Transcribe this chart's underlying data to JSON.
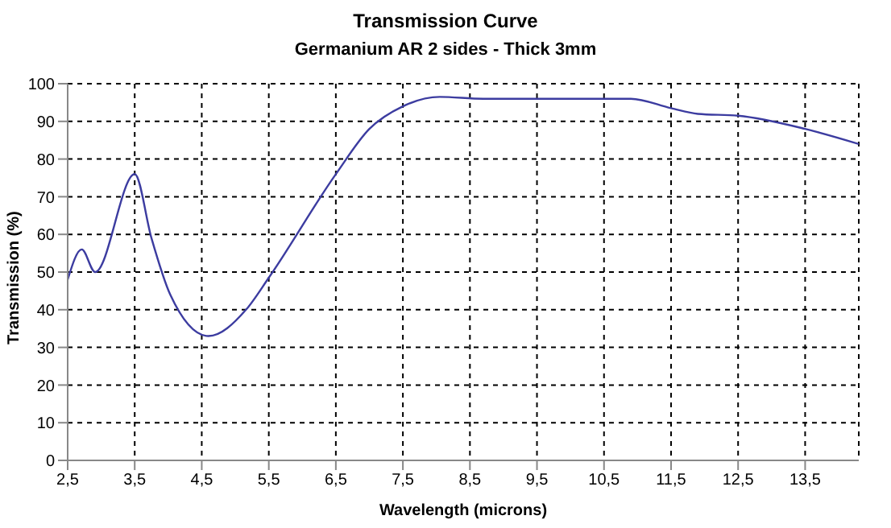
{
  "chart_data": {
    "type": "line",
    "title": "Transmission Curve",
    "subtitle": "Germanium AR 2 sides - Thick 3mm",
    "xlabel": "Wavelength (microns)",
    "ylabel": "Transmission (%)",
    "series": [
      {
        "color": "#3c3ca0",
        "x": [
          2.5,
          2.71,
          2.91,
          3.5,
          3.75,
          4.03,
          4.6,
          5.16,
          5.5,
          6.5,
          7.0,
          7.5,
          8.05,
          8.7,
          10.9,
          11.5,
          11.9,
          12.5,
          13.5,
          14.3
        ],
        "values": [
          48,
          56,
          50,
          76,
          59,
          44,
          33,
          40,
          48.5,
          76,
          88,
          94,
          96.5,
          96,
          96,
          93.5,
          92,
          91.5,
          88,
          84
        ]
      }
    ],
    "xlim": [
      2.5,
      14.3
    ],
    "xticks": [
      {
        "value": 2.5,
        "label": "2,5"
      },
      {
        "value": 3.5,
        "label": "3,5"
      },
      {
        "value": 4.5,
        "label": "4,5"
      },
      {
        "value": 5.5,
        "label": "5,5"
      },
      {
        "value": 6.5,
        "label": "6,5"
      },
      {
        "value": 7.5,
        "label": "7,5"
      },
      {
        "value": 8.5,
        "label": "8,5"
      },
      {
        "value": 9.5,
        "label": "9,5"
      },
      {
        "value": 10.5,
        "label": "10,5"
      },
      {
        "value": 11.5,
        "label": "11,5"
      },
      {
        "value": 12.5,
        "label": "12,5"
      },
      {
        "value": 13.5,
        "label": "13,5"
      }
    ],
    "ylim": [
      0,
      100
    ],
    "yticks": [
      0,
      10,
      20,
      30,
      40,
      50,
      60,
      70,
      80,
      90,
      100
    ],
    "grid": true,
    "line_style": "solid",
    "marker": "none",
    "legend": false
  }
}
